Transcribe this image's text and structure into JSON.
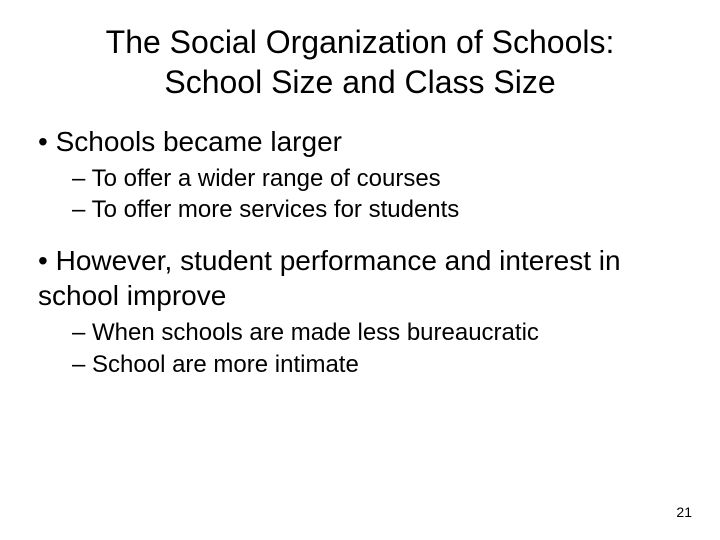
{
  "slide": {
    "title_line1": "The Social Organization of Schools:",
    "title_line2": "School Size and Class Size",
    "bullets": [
      {
        "text": "Schools became larger",
        "sub": [
          "To offer a wider range of courses",
          "To offer more services for students"
        ]
      },
      {
        "text": "However, student performance and interest in school improve",
        "sub": [
          "When schools are made less bureaucratic",
          "School are  more intimate"
        ]
      }
    ],
    "page_number": "21"
  },
  "style": {
    "background_color": "#ffffff",
    "text_color": "#000000",
    "title_fontsize": 32,
    "level1_fontsize": 28,
    "level2_fontsize": 24,
    "pagenum_fontsize": 14,
    "font_family": "Arial"
  }
}
